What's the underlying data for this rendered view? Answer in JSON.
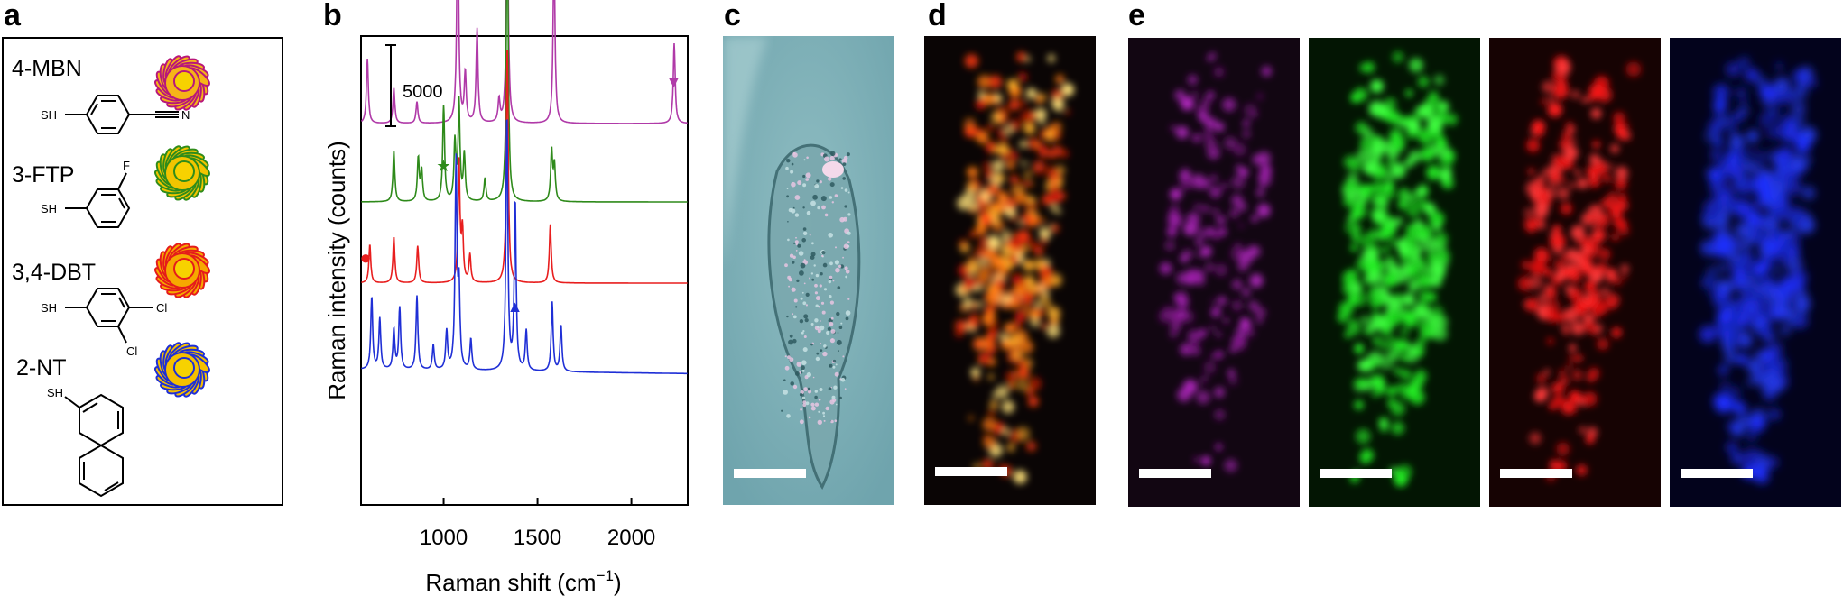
{
  "panels": {
    "a": "a",
    "b": "b",
    "c": "c",
    "d": "d",
    "e": "e"
  },
  "molecules": [
    {
      "label": "4-MBN",
      "atoms": [
        "SH",
        "N"
      ],
      "nanoparticle_fill": "#f6b418",
      "nanoparticle_outline": "#b8177a"
    },
    {
      "label": "3-FTP",
      "atoms": [
        "SH",
        "F"
      ],
      "nanoparticle_fill": "#f2c400",
      "nanoparticle_outline": "#2f8c1a"
    },
    {
      "label": "3,4-DBT",
      "atoms": [
        "SH",
        "Cl",
        "Cl"
      ],
      "nanoparticle_fill": "#f6a800",
      "nanoparticle_outline": "#e51b1b"
    },
    {
      "label": "2-NT",
      "atoms": [
        "SH"
      ],
      "nanoparticle_fill": "#f6c000",
      "nanoparticle_outline": "#1f2fd6"
    }
  ],
  "chart_data": {
    "type": "line",
    "ylabel": "Raman intensity (counts)",
    "xlabel": "Raman shift (cm",
    "xlabel_sup": "−1",
    "xlabel_end": ")",
    "x_ticks": [
      1000,
      1500,
      2000
    ],
    "x_tick_labels": [
      "1000",
      "1500",
      "2000"
    ],
    "xlim": [
      560,
      2300
    ],
    "scale_bar_label": "5000",
    "scale_bar_value": 5000,
    "series": [
      {
        "color": "#b03aa8",
        "marker": "▼",
        "marker_x": 2225,
        "baseline": 0,
        "peaks": [
          [
            594,
            4200
          ],
          [
            735,
            2300
          ],
          [
            858,
            1400
          ],
          [
            1075,
            14600
          ],
          [
            1115,
            3200
          ],
          [
            1178,
            6100
          ],
          [
            1295,
            1500
          ],
          [
            1339,
            15800
          ],
          [
            1588,
            11200
          ],
          [
            2228,
            5200
          ]
        ]
      },
      {
        "color": "#2e8a1a",
        "marker": "★",
        "marker_x": 1000,
        "baseline": 0,
        "peaks": [
          [
            735,
            3300
          ],
          [
            865,
            2800
          ],
          [
            883,
            2000
          ],
          [
            1000,
            6200
          ],
          [
            1060,
            3800
          ],
          [
            1082,
            6400
          ],
          [
            1110,
            3000
          ],
          [
            1220,
            1500
          ],
          [
            1339,
            19200
          ],
          [
            1575,
            3300
          ],
          [
            1590,
            2300
          ]
        ]
      },
      {
        "color": "#e81e1e",
        "marker": "●",
        "marker_x": 585,
        "baseline": 0,
        "peaks": [
          [
            607,
            2500
          ],
          [
            735,
            3000
          ],
          [
            862,
            2400
          ],
          [
            1082,
            7800
          ],
          [
            1100,
            3300
          ],
          [
            1140,
            1800
          ],
          [
            1339,
            15500
          ],
          [
            1568,
            3800
          ]
        ]
      },
      {
        "color": "#1f2fd6",
        "marker": "▲",
        "marker_x": 1380,
        "baseline": 0,
        "peaks": [
          [
            617,
            4700
          ],
          [
            660,
            3300
          ],
          [
            735,
            2600
          ],
          [
            766,
            4000
          ],
          [
            858,
            4800
          ],
          [
            945,
            1600
          ],
          [
            1016,
            2500
          ],
          [
            1066,
            13400
          ],
          [
            1082,
            5000
          ],
          [
            1145,
            2000
          ],
          [
            1337,
            16500
          ],
          [
            1381,
            10900
          ],
          [
            1440,
            2600
          ],
          [
            1578,
            4500
          ],
          [
            1625,
            3000
          ]
        ]
      }
    ]
  },
  "scale_bars": {
    "label": "scale bar"
  }
}
